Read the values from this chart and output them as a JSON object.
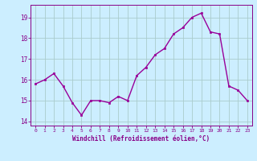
{
  "x": [
    0,
    1,
    2,
    3,
    4,
    5,
    6,
    7,
    8,
    9,
    10,
    11,
    12,
    13,
    14,
    15,
    16,
    17,
    18,
    19,
    20,
    21,
    22,
    23
  ],
  "y": [
    15.8,
    16.0,
    16.3,
    15.7,
    14.9,
    14.3,
    15.0,
    15.0,
    14.9,
    15.2,
    15.0,
    16.2,
    16.6,
    17.2,
    17.5,
    18.2,
    18.5,
    19.0,
    19.2,
    18.3,
    18.2,
    15.7,
    15.5,
    15.0
  ],
  "line_color": "#990099",
  "marker": "s",
  "marker_size": 2.0,
  "xlabel": "Windchill (Refroidissement éolien,°C)",
  "ylim": [
    13.8,
    19.6
  ],
  "xlim": [
    -0.5,
    23.5
  ],
  "yticks": [
    14,
    15,
    16,
    17,
    18,
    19
  ],
  "xticks": [
    0,
    1,
    2,
    3,
    4,
    5,
    6,
    7,
    8,
    9,
    10,
    11,
    12,
    13,
    14,
    15,
    16,
    17,
    18,
    19,
    20,
    21,
    22,
    23
  ],
  "xtick_labels": [
    "0",
    "1",
    "2",
    "3",
    "4",
    "5",
    "6",
    "7",
    "8",
    "9",
    "10",
    "11",
    "12",
    "13",
    "14",
    "15",
    "16",
    "17",
    "18",
    "19",
    "20",
    "21",
    "22",
    "23"
  ],
  "background_color": "#cceeff",
  "grid_color": "#aacccc",
  "tick_color": "#880088",
  "label_color": "#880088",
  "line_width": 1.0,
  "fig_width": 3.2,
  "fig_height": 2.0,
  "dpi": 100
}
